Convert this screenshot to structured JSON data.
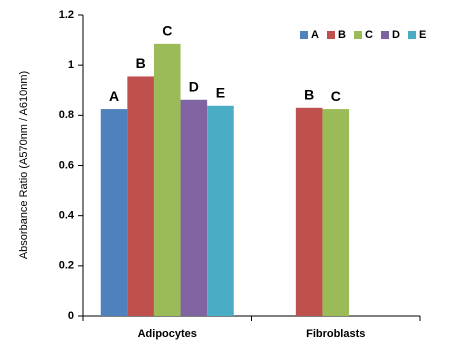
{
  "chart_data": {
    "type": "bar",
    "y_label": "Absorbance Ratio (A570nm / A610nm)",
    "categories": [
      "Adipocytes",
      "Fibroblasts"
    ],
    "series": [
      {
        "name": "A",
        "color": "#4f81bd",
        "values": [
          0.825,
          null
        ]
      },
      {
        "name": "B",
        "color": "#c0504d",
        "values": [
          0.955,
          0.83
        ]
      },
      {
        "name": "C",
        "color": "#9bbb59",
        "values": [
          1.085,
          0.825
        ]
      },
      {
        "name": "D",
        "color": "#8064a2",
        "values": [
          0.862,
          null
        ]
      },
      {
        "name": "E",
        "color": "#4bacc6",
        "values": [
          0.838,
          null
        ]
      }
    ],
    "ylim": [
      0,
      1.2
    ],
    "yticks": [
      0,
      0.2,
      0.4,
      0.6,
      0.8,
      1,
      1.2
    ],
    "legend": "top-right"
  }
}
